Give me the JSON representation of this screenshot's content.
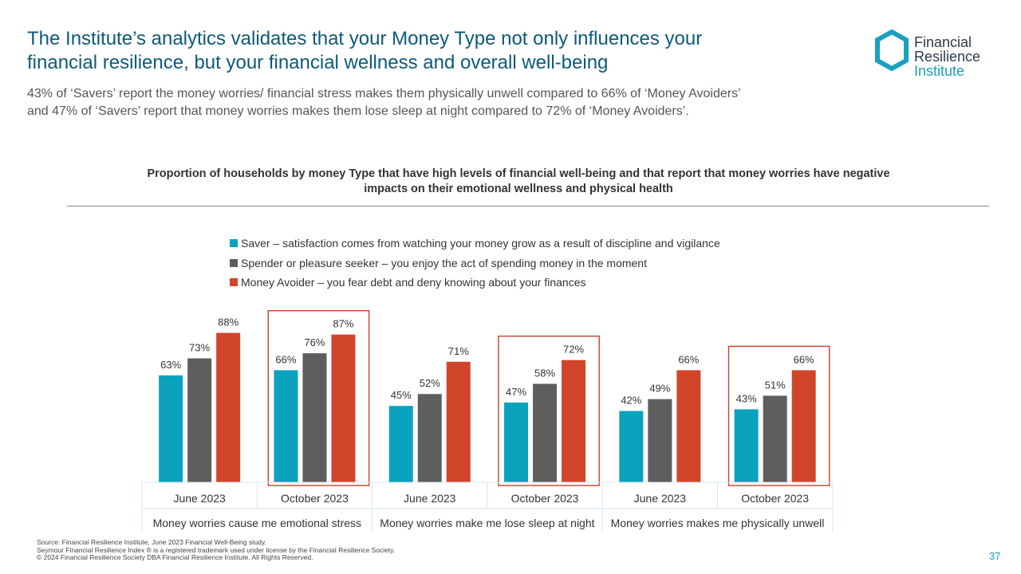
{
  "slide": {
    "title_line1": "The Institute’s analytics validates that your Money Type not only influences your",
    "title_line2": "financial resilience, but your financial wellness and overall well-being",
    "subtitle_line1": "43% of ‘Savers’ report the money worries/ financial stress makes them physically unwell compared to 66% of ‘Money Avoiders’",
    "subtitle_line2": "and 47% of ‘Savers’ report that money worries makes them lose sleep at night compared to 72% of ‘Money Avoiders’.",
    "page_number": "37"
  },
  "logo": {
    "line1": "Financial",
    "line2": "Resilience",
    "line3": "Institute",
    "icon": "hexagon-ring-icon",
    "color": "#1aa0c0"
  },
  "footer": {
    "line1": "Source: Financial Resilience Institute, June 2023 Financial Well-Being study.",
    "line2": "Seymour Financial Resilience Index ® is a registered trademark used under license by the Financial Resilience Society.",
    "line3": "© 2024 Financial Resilience Society DBA Financial Resilience Institute. All Rights Reserved."
  },
  "chart_data": {
    "type": "bar",
    "title_line1": "Proportion of households by money Type that have high levels of financial well-being and that report that money worries have negative",
    "title_line2": "impacts on their emotional wellness and physical health",
    "ylim": [
      0,
      100
    ],
    "categories": [
      "June 2023",
      "October 2023",
      "June 2023",
      "October 2023",
      "June 2023",
      "October 2023"
    ],
    "groups": [
      "Money worries cause me emotional stress",
      "Money worries make me lose sleep at night",
      "Money worries makes me physically unwell"
    ],
    "highlighted_categories": [
      1,
      3,
      5
    ],
    "highlight_color": "#c8402a",
    "series": [
      {
        "name": "Saver – satisfaction comes from watching your money grow as a result of discipline and vigilance",
        "color": "#0aa2bd",
        "values": [
          63,
          66,
          45,
          47,
          42,
          43
        ]
      },
      {
        "name": "Spender or pleasure seeker – you enjoy the act of spending money in the moment",
        "color": "#5e5e5e",
        "values": [
          73,
          76,
          52,
          58,
          49,
          51
        ]
      },
      {
        "name": "Money Avoider – you fear debt and deny knowing about your finances",
        "color": "#d1452b",
        "values": [
          88,
          87,
          71,
          72,
          66,
          66
        ]
      }
    ],
    "value_suffix": "%",
    "legend_position": "top-center",
    "grid": false
  }
}
